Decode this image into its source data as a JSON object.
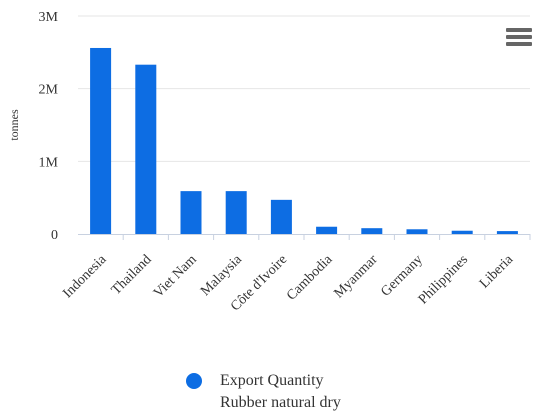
{
  "chart_data": {
    "type": "bar",
    "categories": [
      "Indonesia",
      "Thailand",
      "Viet Nam",
      "Malaysia",
      "Côte d'Ivoire",
      "Cambodia",
      "Myanmar",
      "Germany",
      "Philippines",
      "Liberia"
    ],
    "series": [
      {
        "name": "Export Quantity Rubber natural dry",
        "values": [
          2560000,
          2330000,
          590000,
          590000,
          470000,
          100000,
          80000,
          65000,
          45000,
          40000
        ]
      }
    ],
    "ylabel": "tonnes",
    "ylim": [
      0,
      3000000
    ],
    "yticks": [
      0,
      1000000,
      2000000,
      3000000
    ],
    "ytick_labels": [
      "0",
      "1M",
      "2M",
      "3M"
    ],
    "grid": true,
    "legend_position": "bottom-center"
  },
  "legend": {
    "line1": "Export Quantity",
    "line2": "Rubber natural dry",
    "color": "#0d6de3"
  },
  "colors": {
    "bar": "#0d6de3",
    "grid": "#e6e6e6",
    "axis": "#c8d1e0"
  },
  "menu": {
    "icon": "hamburger-menu-icon"
  }
}
